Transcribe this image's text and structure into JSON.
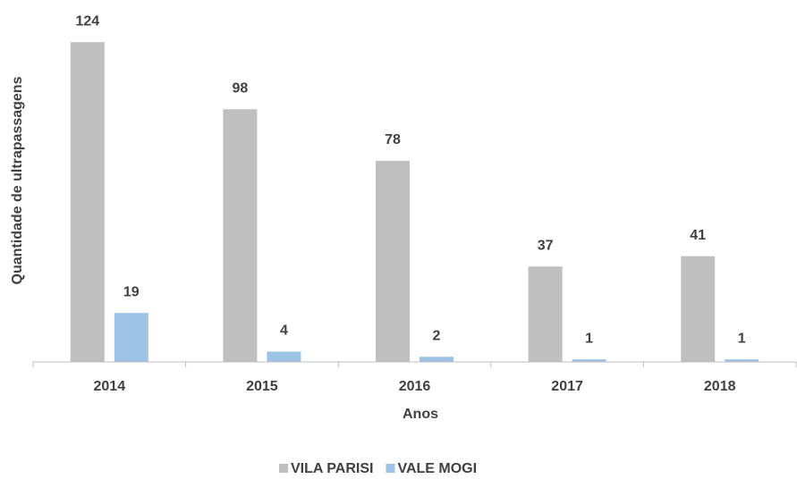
{
  "chart_data": {
    "type": "bar",
    "categories": [
      "2014",
      "2015",
      "2016",
      "2017",
      "2018"
    ],
    "series": [
      {
        "name": "VILA PARISI",
        "color": "#bfbfbf",
        "values": [
          124,
          98,
          78,
          37,
          41
        ]
      },
      {
        "name": "VALE MOGI",
        "color": "#9dc3e6",
        "values": [
          19,
          4,
          2,
          1,
          1
        ]
      }
    ],
    "ylim": [
      0,
      140
    ],
    "x_label": "Anos",
    "y_label": "Quantidade de ultrapassagens",
    "legend": "bottom"
  }
}
